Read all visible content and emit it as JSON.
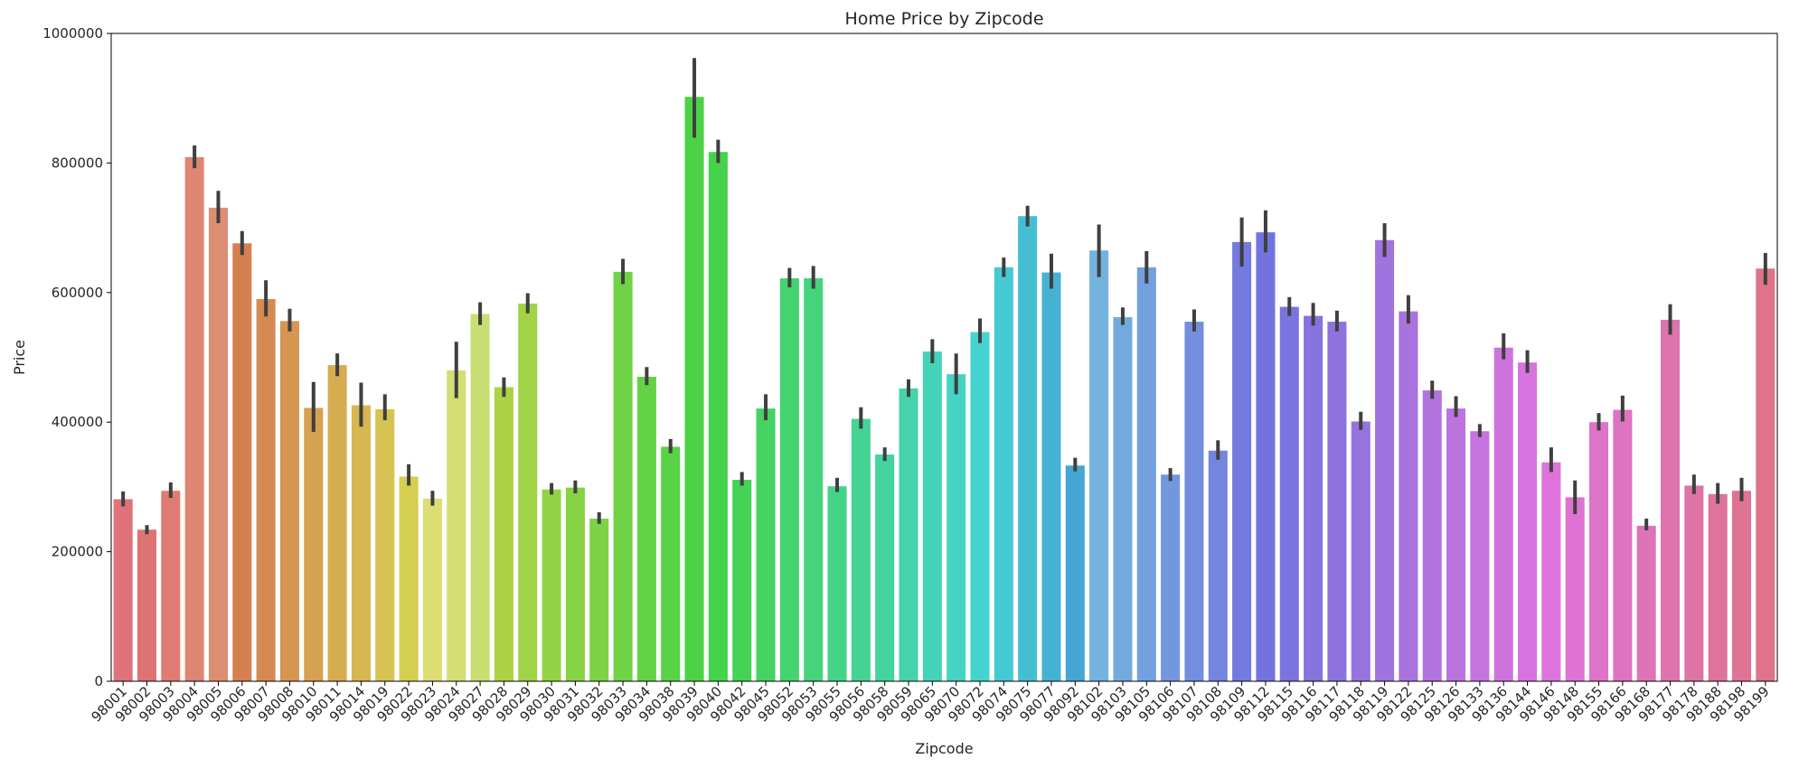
{
  "chart_data": {
    "type": "bar",
    "title": "Home Price by Zipcode",
    "xlabel": "Zipcode",
    "ylabel": "Price",
    "ylim": [
      0,
      1000000
    ],
    "yticks": [
      0,
      200000,
      400000,
      600000,
      800000,
      1000000
    ],
    "yticklabels": [
      "0",
      "200000",
      "400000",
      "600000",
      "800000",
      "1000000"
    ],
    "grid": false,
    "error_bars": true,
    "categories": [
      "98001",
      "98002",
      "98003",
      "98004",
      "98005",
      "98006",
      "98007",
      "98008",
      "98010",
      "98011",
      "98014",
      "98019",
      "98022",
      "98023",
      "98024",
      "98027",
      "98028",
      "98029",
      "98030",
      "98031",
      "98032",
      "98033",
      "98034",
      "98038",
      "98039",
      "98040",
      "98042",
      "98045",
      "98052",
      "98053",
      "98055",
      "98056",
      "98058",
      "98059",
      "98065",
      "98070",
      "98072",
      "98074",
      "98075",
      "98077",
      "98092",
      "98102",
      "98103",
      "98105",
      "98106",
      "98107",
      "98108",
      "98109",
      "98112",
      "98115",
      "98116",
      "98117",
      "98118",
      "98119",
      "98122",
      "98125",
      "98126",
      "98133",
      "98136",
      "98144",
      "98146",
      "98148",
      "98155",
      "98166",
      "98168",
      "98177",
      "98178",
      "98188",
      "98198",
      "98199"
    ],
    "values": [
      281000,
      234000,
      294000,
      809000,
      731000,
      676000,
      590000,
      556000,
      422000,
      488000,
      426000,
      420000,
      316000,
      282000,
      480000,
      567000,
      454000,
      583000,
      296000,
      299000,
      251000,
      632000,
      470000,
      362000,
      902000,
      817000,
      311000,
      421000,
      622000,
      622000,
      301000,
      405000,
      350000,
      452000,
      509000,
      474000,
      539000,
      639000,
      718000,
      631000,
      333000,
      665000,
      562000,
      639000,
      319000,
      555000,
      356000,
      678000,
      693000,
      578000,
      564000,
      555000,
      401000,
      681000,
      571000,
      449000,
      421000,
      386000,
      515000,
      492000,
      338000,
      284000,
      400000,
      419000,
      240000,
      558000,
      302000,
      289000,
      294000,
      637000
    ],
    "ci_low": [
      270000,
      227000,
      283000,
      792000,
      707000,
      658000,
      563000,
      540000,
      385000,
      471000,
      393000,
      403000,
      302000,
      271000,
      437000,
      550000,
      439000,
      568000,
      288000,
      290000,
      243000,
      613000,
      457000,
      352000,
      839000,
      800000,
      302000,
      403000,
      608000,
      606000,
      292000,
      390000,
      340000,
      439000,
      491000,
      443000,
      522000,
      624000,
      702000,
      606000,
      324000,
      624000,
      550000,
      614000,
      309000,
      540000,
      342000,
      640000,
      662000,
      564000,
      549000,
      540000,
      388000,
      655000,
      552000,
      436000,
      408000,
      377000,
      497000,
      476000,
      323000,
      258000,
      387000,
      401000,
      233000,
      535000,
      289000,
      274000,
      278000,
      612000
    ],
    "ci_high": [
      293000,
      241000,
      307000,
      827000,
      757000,
      695000,
      619000,
      575000,
      462000,
      506000,
      461000,
      443000,
      335000,
      294000,
      524000,
      585000,
      469000,
      599000,
      306000,
      310000,
      261000,
      652000,
      485000,
      374000,
      962000,
      836000,
      323000,
      443000,
      638000,
      641000,
      314000,
      423000,
      361000,
      466000,
      528000,
      506000,
      560000,
      654000,
      734000,
      660000,
      345000,
      705000,
      577000,
      664000,
      329000,
      574000,
      372000,
      716000,
      727000,
      593000,
      584000,
      572000,
      416000,
      707000,
      596000,
      464000,
      440000,
      397000,
      537000,
      511000,
      361000,
      310000,
      414000,
      441000,
      251000,
      582000,
      319000,
      306000,
      314000,
      661000
    ]
  }
}
